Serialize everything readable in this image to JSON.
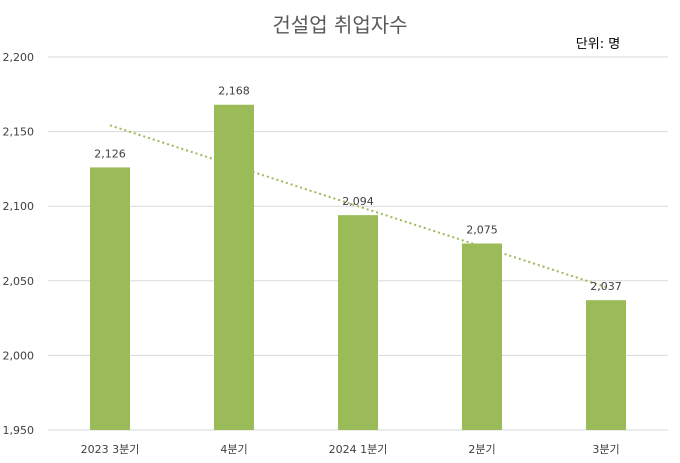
{
  "chart_data": {
    "type": "bar",
    "title": "건설업 취업자수",
    "unit_label": "단위: 명",
    "categories": [
      "2023 3분기",
      "4분기",
      "2024 1분기",
      "2분기",
      "3분기"
    ],
    "values": [
      2126,
      2168,
      2094,
      2075,
      2037
    ],
    "value_labels": [
      "2,126",
      "2,168",
      "2,094",
      "2,075",
      "2,037"
    ],
    "ylim": [
      1950,
      2200
    ],
    "y_ticks": [
      1950,
      2000,
      2050,
      2100,
      2150,
      2200
    ],
    "y_tick_labels": [
      "1,950",
      "2,000",
      "2,050",
      "2,100",
      "2,150",
      "2,200"
    ],
    "trendline": {
      "type": "linear",
      "style": "dotted"
    },
    "grid": true,
    "legend": "none",
    "colors": {
      "bar": "#9BBB59",
      "trend": "#9BBB59",
      "grid": "#D9D9D9"
    }
  }
}
